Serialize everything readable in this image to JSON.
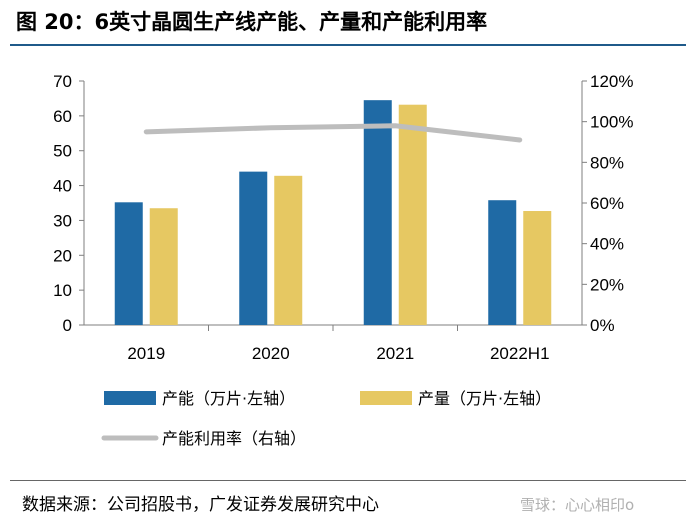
{
  "title": "图 20：6英寸晶圆生产线产能、产量和产能利用率",
  "source": "数据来源：公司招股书，广发证券发展研究中心",
  "watermark": "雪球：心心相印o",
  "colors": {
    "capacity": "#1f6aa5",
    "output": "#e6c862",
    "utilization": "#bdbdbd",
    "rule": "#1f5a8a"
  },
  "chart_data": {
    "type": "bar",
    "categories": [
      "2019",
      "2020",
      "2021",
      "2022H1"
    ],
    "series": [
      {
        "name": "产能（万片·左轴）",
        "type": "bar",
        "axis": "left",
        "values": [
          35.2,
          44.0,
          64.5,
          35.8
        ]
      },
      {
        "name": "产量（万片·左轴）",
        "type": "bar",
        "axis": "left",
        "values": [
          33.5,
          42.8,
          63.2,
          32.7
        ]
      },
      {
        "name": "产能利用率（右轴）",
        "type": "line",
        "axis": "right",
        "values": [
          0.95,
          0.97,
          0.98,
          0.91
        ]
      }
    ],
    "y_left": {
      "min": 0,
      "max": 70,
      "ticks": [
        "0",
        "10",
        "20",
        "30",
        "40",
        "50",
        "60",
        "70"
      ]
    },
    "y_right": {
      "min": 0,
      "max": 1.2,
      "ticks": [
        "0%",
        "20%",
        "40%",
        "60%",
        "80%",
        "100%",
        "120%"
      ]
    },
    "grid": false,
    "legend_position": "bottom"
  }
}
